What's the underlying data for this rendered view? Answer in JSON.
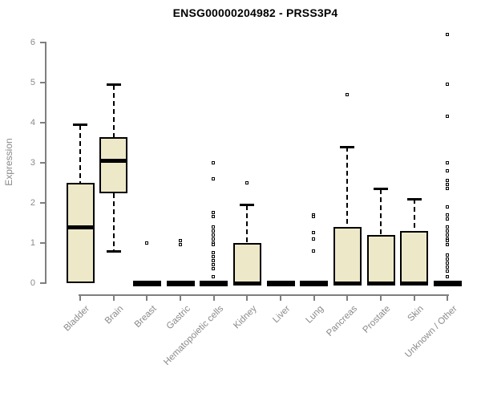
{
  "colors": {
    "box_fill": "#EDE8C8",
    "box_line": "#000000",
    "axis": "#7F7F7F",
    "text_gray": "#8A8A8A",
    "title": "#000000",
    "background": "#FFFFFF"
  },
  "chart_data": {
    "type": "boxplot",
    "title": "ENSG00000204982 - PRSS3P4",
    "xlabel": "",
    "ylabel": "Expression",
    "ylim": [
      0,
      6
    ],
    "yticks": [
      0,
      1,
      2,
      3,
      4,
      5,
      6
    ],
    "grid": false,
    "legend": null,
    "categories": [
      "Bladder",
      "Brain",
      "Breast",
      "Gastric",
      "Hematopoietic cells",
      "Kidney",
      "Liver",
      "Lung",
      "Pancreas",
      "Prostate",
      "Skin",
      "Unknown / Other"
    ],
    "series": [
      {
        "name": "Bladder",
        "low": 0,
        "q1": 0,
        "median": 1.4,
        "q3": 2.5,
        "high": 3.95,
        "outliers": []
      },
      {
        "name": "Brain",
        "low": 0.8,
        "q1": 2.25,
        "median": 3.05,
        "q3": 3.65,
        "high": 4.95,
        "outliers": []
      },
      {
        "name": "Breast",
        "low": 0,
        "q1": 0,
        "median": 0,
        "q3": 0,
        "high": 0,
        "outliers": [
          1.0
        ]
      },
      {
        "name": "Gastric",
        "low": 0,
        "q1": 0,
        "median": 0,
        "q3": 0,
        "high": 0,
        "outliers": [
          1.05,
          0.95
        ]
      },
      {
        "name": "Hematopoietic cells",
        "low": 0,
        "q1": 0,
        "median": 0,
        "q3": 0,
        "high": 0,
        "outliers": [
          3.0,
          2.6,
          1.75,
          1.65,
          1.4,
          1.3,
          1.2,
          1.1,
          1.0,
          0.95,
          0.75,
          0.65,
          0.55,
          0.45,
          0.35,
          0.15
        ]
      },
      {
        "name": "Kidney",
        "low": 0,
        "q1": 0,
        "median": 0,
        "q3": 1.0,
        "high": 1.95,
        "outliers": [
          2.5
        ]
      },
      {
        "name": "Liver",
        "low": 0,
        "q1": 0,
        "median": 0,
        "q3": 0,
        "high": 0,
        "outliers": []
      },
      {
        "name": "Lung",
        "low": 0,
        "q1": 0,
        "median": 0,
        "q3": 0,
        "high": 0,
        "outliers": [
          1.7,
          1.65,
          1.25,
          1.1,
          0.8
        ]
      },
      {
        "name": "Pancreas",
        "low": 0,
        "q1": 0,
        "median": 0,
        "q3": 1.4,
        "high": 3.4,
        "outliers": [
          4.7
        ]
      },
      {
        "name": "Prostate",
        "low": 0,
        "q1": 0,
        "median": 0,
        "q3": 1.2,
        "high": 2.35,
        "outliers": []
      },
      {
        "name": "Skin",
        "low": 0,
        "q1": 0,
        "median": 0,
        "q3": 1.3,
        "high": 2.1,
        "outliers": []
      },
      {
        "name": "Unknown / Other",
        "low": 0,
        "q1": 0,
        "median": 0,
        "q3": 0,
        "high": 0,
        "outliers": [
          6.2,
          4.95,
          4.15,
          3.0,
          2.8,
          2.55,
          2.45,
          2.35,
          1.9,
          1.7,
          1.6,
          1.4,
          1.3,
          1.2,
          1.1,
          1.05,
          0.95,
          0.7,
          0.6,
          0.5,
          0.4,
          0.3,
          0.15
        ]
      }
    ]
  }
}
